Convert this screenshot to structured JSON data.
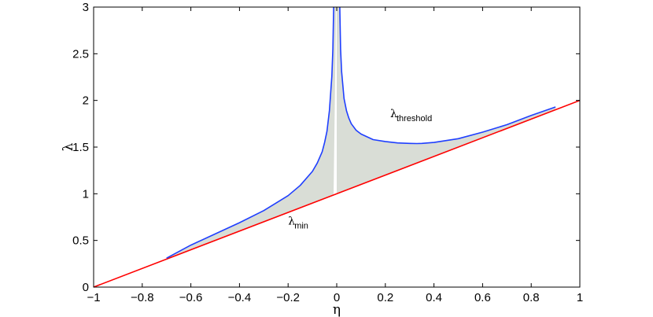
{
  "chart_data": {
    "type": "line",
    "title": "",
    "xlabel": "η",
    "ylabel": "λ",
    "xlim": [
      -1,
      1
    ],
    "ylim": [
      0,
      3
    ],
    "xticks": [
      -1,
      -0.8,
      -0.6,
      -0.4,
      -0.2,
      0,
      0.2,
      0.4,
      0.6,
      0.8,
      1
    ],
    "xtick_labels": [
      "−1",
      "−0.8",
      "−0.6",
      "−0.4",
      "−0.2",
      "0",
      "0.2",
      "0.4",
      "0.6",
      "0.8",
      "1"
    ],
    "yticks": [
      0,
      0.5,
      1,
      1.5,
      2,
      2.5,
      3
    ],
    "ytick_labels": [
      "0",
      "0.5",
      "1",
      "1.5",
      "2",
      "2.5",
      "3"
    ],
    "grid": false,
    "legend": "none",
    "fill_between": {
      "upper": "λ_threshold",
      "lower": "λ_min",
      "color": "#d9ddd6"
    },
    "series": [
      {
        "name": "λ_min",
        "color": "#ff0000",
        "x": [
          -1,
          1
        ],
        "y": [
          0,
          2
        ]
      },
      {
        "name": "λ_threshold",
        "color": "#1f3fff",
        "x": [
          -0.7,
          -0.6,
          -0.5,
          -0.4,
          -0.3,
          -0.2,
          -0.15,
          -0.1,
          -0.08,
          -0.06,
          -0.05,
          -0.04,
          -0.03,
          -0.02,
          -0.016,
          -0.013,
          0.013,
          0.016,
          0.02,
          0.03,
          0.04,
          0.05,
          0.06,
          0.08,
          0.1,
          0.15,
          0.2,
          0.25,
          0.3,
          0.33,
          0.35,
          0.4,
          0.5,
          0.6,
          0.7,
          0.8,
          0.9
        ],
        "y": [
          0.31,
          0.45,
          0.57,
          0.69,
          0.82,
          0.98,
          1.09,
          1.24,
          1.33,
          1.45,
          1.55,
          1.67,
          1.89,
          2.26,
          2.55,
          2.95,
          2.95,
          2.55,
          2.31,
          2.02,
          1.89,
          1.81,
          1.75,
          1.68,
          1.64,
          1.58,
          1.56,
          1.545,
          1.54,
          1.538,
          1.54,
          1.55,
          1.59,
          1.66,
          1.74,
          1.84,
          1.93
        ]
      }
    ],
    "annotations": [
      {
        "main": "λ",
        "sub": "threshold",
        "x": 0.22,
        "y": 1.82
      },
      {
        "main": "λ",
        "sub": "min",
        "x": -0.2,
        "y": 0.67
      }
    ]
  }
}
